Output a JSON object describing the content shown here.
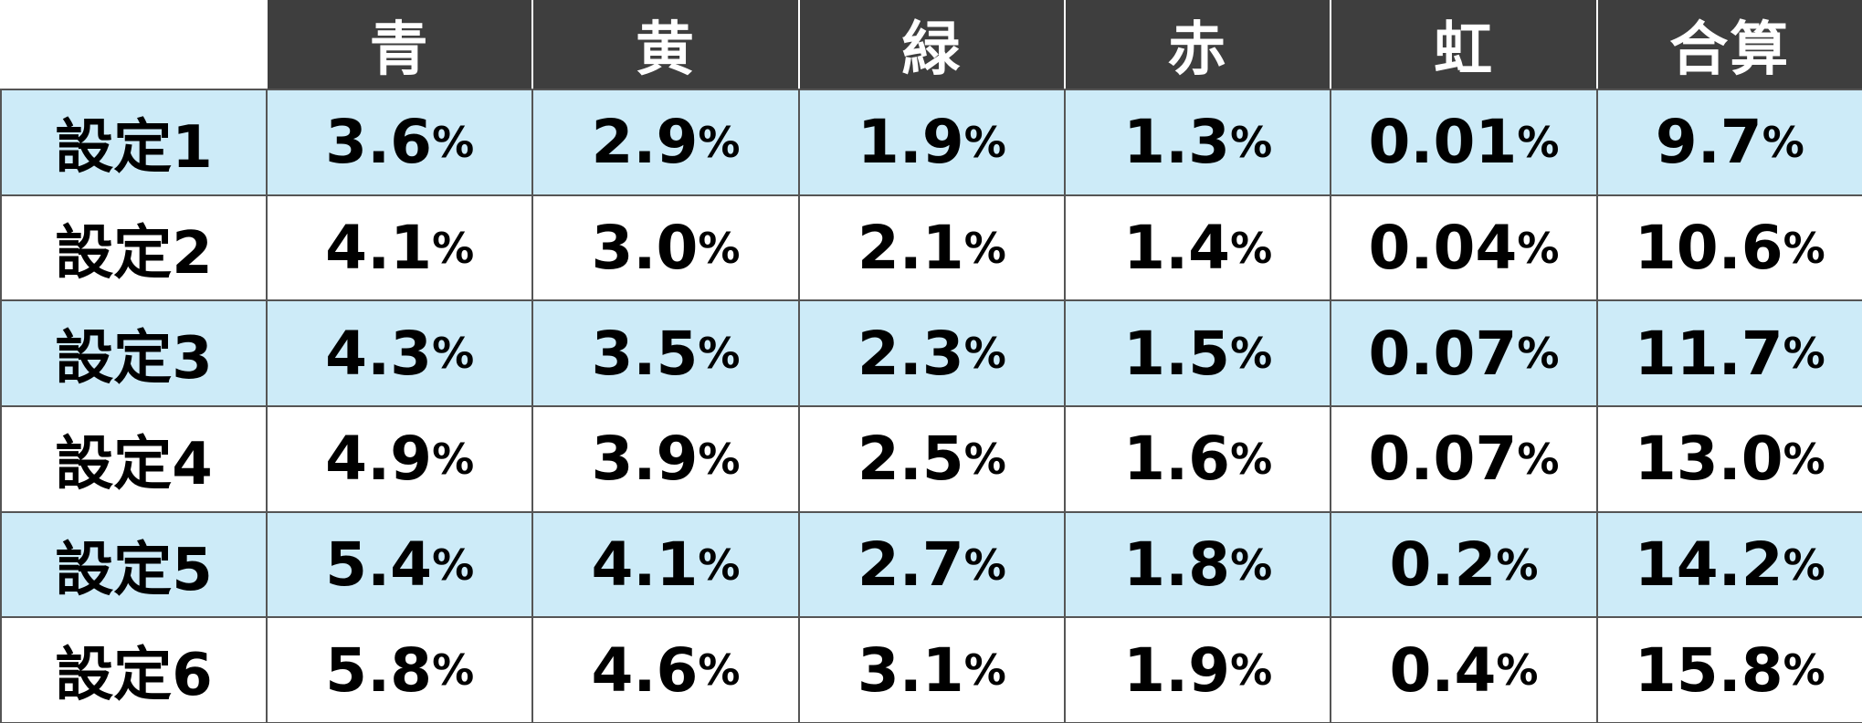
{
  "table": {
    "headers": [
      "青",
      "黄",
      "緑",
      "赤",
      "虹",
      "合算"
    ],
    "rows": [
      {
        "label": "設定1",
        "values": [
          "3.6",
          "2.9",
          "1.9",
          "1.3",
          "0.01",
          "9.7"
        ]
      },
      {
        "label": "設定2",
        "values": [
          "4.1",
          "3.0",
          "2.1",
          "1.4",
          "0.04",
          "10.6"
        ]
      },
      {
        "label": "設定3",
        "values": [
          "4.3",
          "3.5",
          "2.3",
          "1.5",
          "0.07",
          "11.7"
        ]
      },
      {
        "label": "設定4",
        "values": [
          "4.9",
          "3.9",
          "2.5",
          "1.6",
          "0.07",
          "13.0"
        ]
      },
      {
        "label": "設定5",
        "values": [
          "5.4",
          "4.1",
          "2.7",
          "1.8",
          "0.2",
          "14.2"
        ]
      },
      {
        "label": "設定6",
        "values": [
          "5.8",
          "4.6",
          "3.1",
          "1.9",
          "0.4",
          "15.8"
        ]
      }
    ],
    "unit": "%"
  },
  "colors": {
    "header_bg": "#3e3e3e",
    "header_text": "#ffffff",
    "row_alt_bg": "#cdebf8",
    "row_plain_bg": "#ffffff",
    "text": "#000000"
  }
}
